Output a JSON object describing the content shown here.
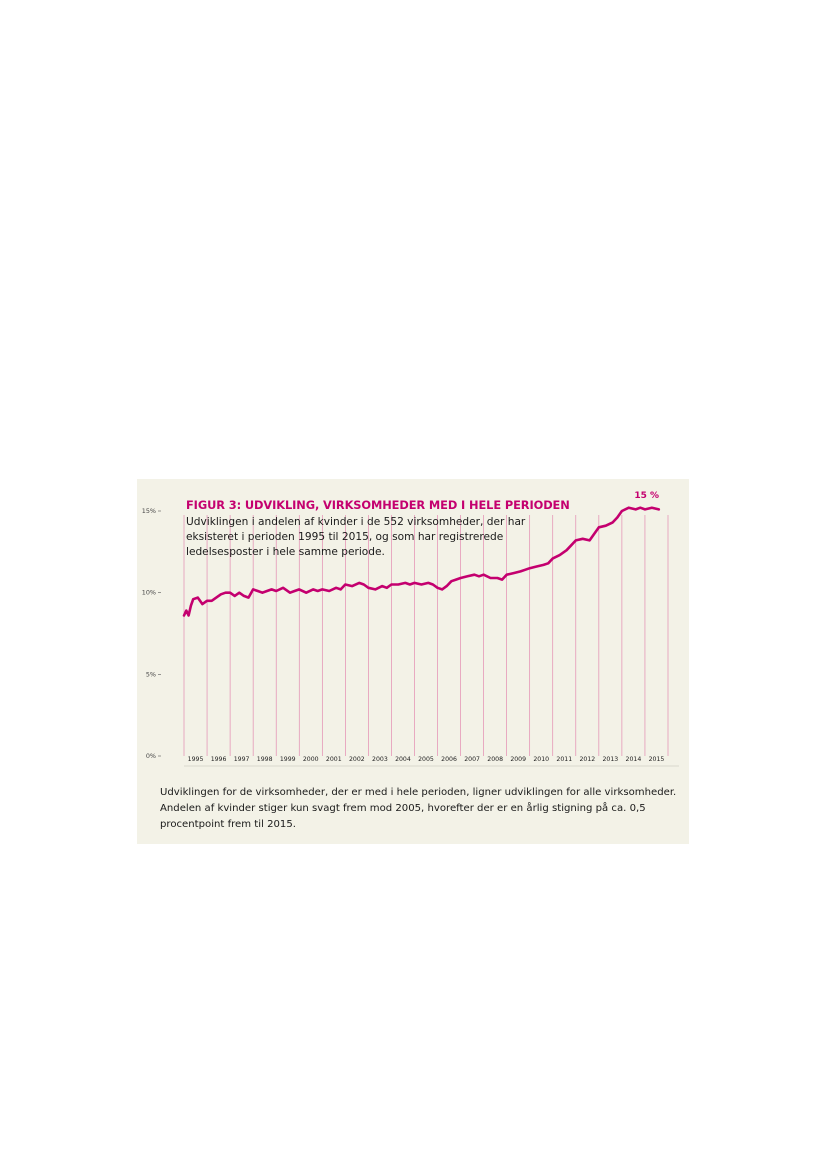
{
  "figure": {
    "title": "FIGUR 3: UDVIKLING, VIRKSOMHEDER MED I HELE PERIODEN",
    "subtitle": "Udviklingen i andelen af kvinder i de 552 virksomheder, der har eksisteret i perioden 1995 til 2015, og som har registrerede ledelsesposter i hele samme periode.",
    "caption": "Udviklingen for de virksomheder, der er med i hele perioden, ligner udviklingen for alle virksomheder. Andelen af kvinder stiger kun svagt frem mod 2005, hvorefter der er en årlig stigning på ca. 0,5 procentpoint frem til 2015."
  },
  "colors": {
    "panel": "#f3f2e7",
    "accent": "#c4006f",
    "gridline": "#e07aa8"
  },
  "chart_data": {
    "type": "line",
    "title": "FIGUR 3: UDVIKLING, VIRKSOMHEDER MED I HELE PERIODEN",
    "xlabel": "",
    "ylabel": "",
    "ylim": [
      0,
      15
    ],
    "yticks": [
      0,
      5,
      10,
      15
    ],
    "ytick_labels": [
      "0%",
      "5%",
      "10%",
      "15%"
    ],
    "xlim": [
      1995,
      2016
    ],
    "x_categories": [
      "1995",
      "1996",
      "1997",
      "1998",
      "1999",
      "2000",
      "2001",
      "2002",
      "2003",
      "2004",
      "2005",
      "2006",
      "2007",
      "2008",
      "2009",
      "2010",
      "2011",
      "2012",
      "2013",
      "2014",
      "2015"
    ],
    "end_label": "15 %",
    "grid": "vertical lines at year boundaries",
    "series": [
      {
        "x": [
          1995.0,
          1995.1,
          1995.2,
          1995.3,
          1995.4,
          1995.6,
          1995.8,
          1996.0,
          1996.2,
          1996.4,
          1996.6,
          1996.8,
          1997.0,
          1997.2,
          1997.4,
          1997.6,
          1997.8,
          1998.0,
          1998.2,
          1998.4,
          1998.6,
          1998.8,
          1999.0,
          1999.3,
          1999.6,
          1999.8,
          2000.0,
          2000.3,
          2000.6,
          2000.8,
          2001.0,
          2001.3,
          2001.6,
          2001.8,
          2002.0,
          2002.3,
          2002.6,
          2002.8,
          2003.0,
          2003.3,
          2003.6,
          2003.8,
          2004.0,
          2004.3,
          2004.6,
          2004.8,
          2005.0,
          2005.3,
          2005.6,
          2005.8,
          2006.0,
          2006.2,
          2006.4,
          2006.6,
          2006.8,
          2007.0,
          2007.3,
          2007.6,
          2007.8,
          2008.0,
          2008.3,
          2008.6,
          2008.8,
          2009.0,
          2009.3,
          2009.6,
          2009.8,
          2010.0,
          2010.3,
          2010.6,
          2010.8,
          2011.0,
          2011.3,
          2011.6,
          2011.8,
          2012.0,
          2012.3,
          2012.6,
          2012.8,
          2013.0,
          2013.3,
          2013.6,
          2013.8,
          2014.0,
          2014.3,
          2014.6,
          2014.8,
          2015.0,
          2015.3,
          2015.6
        ],
        "values": [
          8.6,
          8.9,
          8.6,
          9.2,
          9.6,
          9.7,
          9.3,
          9.5,
          9.5,
          9.7,
          9.9,
          10.0,
          10.0,
          9.8,
          10.0,
          9.8,
          9.7,
          10.2,
          10.1,
          10.0,
          10.1,
          10.2,
          10.1,
          10.3,
          10.0,
          10.1,
          10.2,
          10.0,
          10.2,
          10.1,
          10.2,
          10.1,
          10.3,
          10.2,
          10.5,
          10.4,
          10.6,
          10.5,
          10.3,
          10.2,
          10.4,
          10.3,
          10.5,
          10.5,
          10.6,
          10.5,
          10.6,
          10.5,
          10.6,
          10.5,
          10.3,
          10.2,
          10.4,
          10.7,
          10.8,
          10.9,
          11.0,
          11.1,
          11.0,
          11.1,
          10.9,
          10.9,
          10.8,
          11.1,
          11.2,
          11.3,
          11.4,
          11.5,
          11.6,
          11.7,
          11.8,
          12.1,
          12.3,
          12.6,
          12.9,
          13.2,
          13.3,
          13.2,
          13.6,
          14.0,
          14.1,
          14.3,
          14.6,
          15.0,
          15.2,
          15.1,
          15.2,
          15.1,
          15.2,
          15.1
        ]
      }
    ]
  }
}
